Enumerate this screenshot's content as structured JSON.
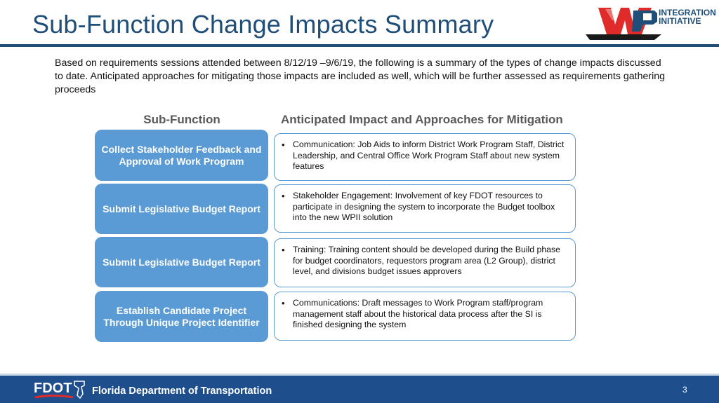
{
  "slide": {
    "title": "Sub-Function Change Impacts Summary",
    "intro": "Based on requirements sessions attended between 8/12/19 –9/6/19, the following is a summary of the types of change impacts discussed to date. Anticipated approaches for mitigating those impacts are included as well, which will be further assessed as requirements gathering proceeds",
    "logo": {
      "letters": "WP",
      "line1": "INTEGRATION",
      "line2": "INITIATIVE"
    },
    "columns": {
      "left": "Sub-Function",
      "right": "Anticipated Impact and Approaches for Mitigation"
    },
    "rows": [
      {
        "subfunction": "Collect Stakeholder Feedback and Approval of Work Program",
        "impact": "Communication: Job Aids to inform District Work Program Staff, District Leadership, and Central Office Work Program Staff about new system features"
      },
      {
        "subfunction": "Submit Legislative Budget Report",
        "impact": "Stakeholder Engagement: Involvement of key FDOT resources to participate in designing the system to incorporate the Budget toolbox into the new WPII solution"
      },
      {
        "subfunction": "Submit Legislative Budget Report",
        "impact": "Training: Training content should be developed during the Build phase for budget coordinators, requestors program area (L2 Group), district level, and divisions budget issues approvers"
      },
      {
        "subfunction": "Establish Candidate Project Through Unique Project Identifier",
        "impact": "Communications: Draft messages to Work Program staff/program management staff about the historical data process after the SI is finished designing the system"
      }
    ],
    "bullet_glyph": "•",
    "footer": {
      "logo_text": "FDOT",
      "label": "Florida Department of Transportation",
      "page_number": "3"
    },
    "colors": {
      "title": "#1f4e79",
      "pill": "#5b9bd5",
      "footer": "#1f4e8c"
    }
  }
}
